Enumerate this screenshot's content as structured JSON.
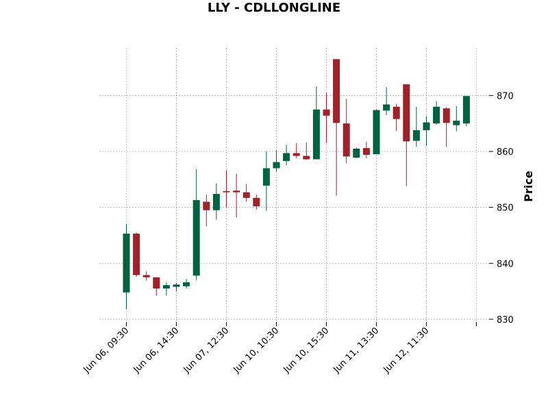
{
  "chart_data": {
    "type": "candlestick",
    "title": "LLY - CDLLONGLINE",
    "ylabel": "Price",
    "ylim": [
      829.5,
      878.5
    ],
    "yticks": [
      830,
      840,
      850,
      860,
      870
    ],
    "grid": true,
    "colors": {
      "up": "#006340",
      "down": "#a02128"
    },
    "xtick_labels": [
      {
        "index": 0,
        "label": "Jun 06, 09:30"
      },
      {
        "index": 5,
        "label": "Jun 06, 14:30"
      },
      {
        "index": 10,
        "label": "Jun 07, 12:30"
      },
      {
        "index": 15,
        "label": "Jun 10, 10:30"
      },
      {
        "index": 20,
        "label": "Jun 10, 15:30"
      },
      {
        "index": 25,
        "label": "Jun 11, 13:30"
      },
      {
        "index": 30,
        "label": "Jun 12, 11:30"
      },
      {
        "index": 35,
        "label": ""
      }
    ],
    "candles": [
      {
        "o": 834.8,
        "h": 847.0,
        "l": 831.8,
        "c": 845.3
      },
      {
        "o": 845.3,
        "h": 845.5,
        "l": 837.6,
        "c": 837.9
      },
      {
        "o": 837.9,
        "h": 838.6,
        "l": 836.9,
        "c": 837.5
      },
      {
        "o": 837.5,
        "h": 837.5,
        "l": 834.2,
        "c": 835.5
      },
      {
        "o": 835.5,
        "h": 836.6,
        "l": 834.2,
        "c": 836.1
      },
      {
        "o": 835.8,
        "h": 836.5,
        "l": 835.0,
        "c": 836.2
      },
      {
        "o": 835.9,
        "h": 837.2,
        "l": 835.5,
        "c": 836.6
      },
      {
        "o": 837.8,
        "h": 856.8,
        "l": 837.0,
        "c": 851.3
      },
      {
        "o": 851.0,
        "h": 852.3,
        "l": 846.6,
        "c": 849.5
      },
      {
        "o": 849.5,
        "h": 854.3,
        "l": 847.8,
        "c": 852.4
      },
      {
        "o": 852.9,
        "h": 856.6,
        "l": 850.0,
        "c": 852.7
      },
      {
        "o": 853.0,
        "h": 856.0,
        "l": 848.2,
        "c": 852.7
      },
      {
        "o": 852.7,
        "h": 854.2,
        "l": 851.0,
        "c": 851.7
      },
      {
        "o": 851.7,
        "h": 852.3,
        "l": 849.6,
        "c": 850.2
      },
      {
        "o": 853.9,
        "h": 860.0,
        "l": 849.4,
        "c": 857.0
      },
      {
        "o": 857.0,
        "h": 860.2,
        "l": 856.4,
        "c": 858.1
      },
      {
        "o": 858.3,
        "h": 861.2,
        "l": 857.5,
        "c": 859.7
      },
      {
        "o": 859.7,
        "h": 861.5,
        "l": 858.8,
        "c": 859.2
      },
      {
        "o": 859.2,
        "h": 861.6,
        "l": 858.5,
        "c": 858.6
      },
      {
        "o": 858.6,
        "h": 871.6,
        "l": 858.6,
        "c": 867.5
      },
      {
        "o": 867.5,
        "h": 870.5,
        "l": 861.5,
        "c": 866.4
      },
      {
        "o": 876.5,
        "h": 876.5,
        "l": 852.1,
        "c": 865.1
      },
      {
        "o": 865.0,
        "h": 869.4,
        "l": 857.9,
        "c": 859.1
      },
      {
        "o": 858.9,
        "h": 860.7,
        "l": 858.8,
        "c": 860.5
      },
      {
        "o": 860.6,
        "h": 861.7,
        "l": 858.8,
        "c": 859.4
      },
      {
        "o": 859.5,
        "h": 867.5,
        "l": 859.5,
        "c": 867.4
      },
      {
        "o": 867.3,
        "h": 871.5,
        "l": 866.5,
        "c": 868.4
      },
      {
        "o": 868.0,
        "h": 868.5,
        "l": 863.7,
        "c": 865.8
      },
      {
        "o": 872.0,
        "h": 872.0,
        "l": 853.8,
        "c": 861.8
      },
      {
        "o": 861.9,
        "h": 868.0,
        "l": 860.8,
        "c": 863.8
      },
      {
        "o": 863.8,
        "h": 866.3,
        "l": 861.0,
        "c": 865.2
      },
      {
        "o": 865.0,
        "h": 869.0,
        "l": 864.8,
        "c": 868.0
      },
      {
        "o": 867.7,
        "h": 867.9,
        "l": 860.8,
        "c": 865.1
      },
      {
        "o": 864.7,
        "h": 868.1,
        "l": 863.6,
        "c": 865.5
      },
      {
        "o": 865.0,
        "h": 869.9,
        "l": 864.5,
        "c": 869.9
      }
    ]
  }
}
